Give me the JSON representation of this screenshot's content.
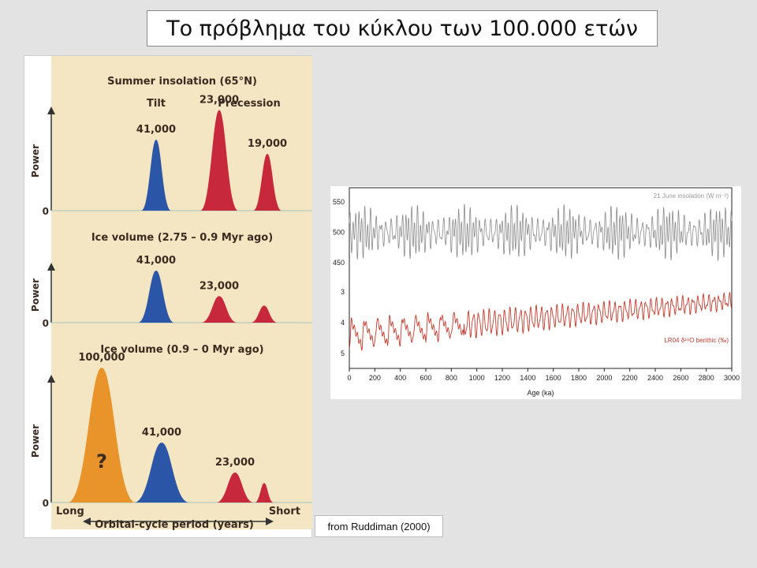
{
  "title": "Το πρόβλημα του κύκλου των 100.000 ετών",
  "source": "from Ruddiman (2000)",
  "colors": {
    "tilt": "#2b55a6",
    "precession": "#c8283b",
    "eccentricity": "#e8942a",
    "panel_bg": "#f4e6c2",
    "insolation_line": "#8a8a8a",
    "benthic_line": "#c0392b"
  },
  "chart_data": [
    {
      "type": "area",
      "subtype": "power-spectrum",
      "ylabel": "Power",
      "xlabel": "Orbital-cycle period (years)",
      "x_end_labels": [
        "Long",
        "Short"
      ],
      "zero_label": "0",
      "panels": [
        {
          "title": "Summer insolation (65°N)",
          "header_labels": [
            "Tilt",
            "Precession"
          ],
          "peaks": [
            {
              "label": "41,000",
              "relative_power": 0.6,
              "color_key": "tilt"
            },
            {
              "label": "23,000",
              "relative_power": 0.85,
              "color_key": "precession"
            },
            {
              "label": "19,000",
              "relative_power": 0.48,
              "color_key": "precession"
            }
          ]
        },
        {
          "title": "Ice volume (2.75 – 0.9 Myr ago)",
          "peaks": [
            {
              "label": "41,000",
              "relative_power": 0.55,
              "color_key": "tilt"
            },
            {
              "label": "23,000",
              "relative_power": 0.28,
              "color_key": "precession"
            },
            {
              "label": "",
              "relative_power": 0.18,
              "color_key": "precession"
            }
          ]
        },
        {
          "title": "Ice volume (0.9 – 0 Myr ago)",
          "peaks": [
            {
              "label": "100,000",
              "relative_power": 0.9,
              "color_key": "eccentricity",
              "marker": "?"
            },
            {
              "label": "41,000",
              "relative_power": 0.4,
              "color_key": "tilt"
            },
            {
              "label": "23,000",
              "relative_power": 0.2,
              "color_key": "precession"
            },
            {
              "label": "",
              "relative_power": 0.13,
              "color_key": "precession"
            }
          ]
        }
      ]
    },
    {
      "type": "line",
      "xlabel": "Age (ka)",
      "xlim": [
        0,
        3000
      ],
      "xticks": [
        0,
        200,
        400,
        600,
        800,
        1000,
        1200,
        1400,
        1600,
        1800,
        2000,
        2200,
        2400,
        2600,
        2800,
        3000
      ],
      "series": [
        {
          "name": "21 June insolation (W m⁻²)",
          "yticks": [
            550,
            500,
            450
          ],
          "description_values": {
            "mean": 500,
            "amplitude": 45,
            "dominant_period_ka": 23
          }
        },
        {
          "name": "LR04 δ¹⁸O benthic (‰)",
          "yticks": [
            3,
            4,
            5
          ],
          "inverted": true,
          "description_values": {
            "mean_at_3000ka": 3.3,
            "mean_at_0ka": 4.4,
            "amplitude_at_0ka": 0.9,
            "amplitude_at_3000ka": 0.35
          }
        }
      ]
    }
  ]
}
